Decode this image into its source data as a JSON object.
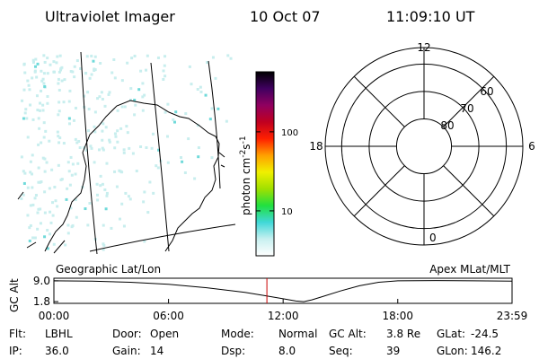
{
  "header": {
    "title": "Ultraviolet Imager",
    "date": "10 Oct 07",
    "time": "11:09:10 UT"
  },
  "colorbar": {
    "label": [
      "photon cm",
      "-2",
      "s",
      "-1"
    ],
    "log_scale": true,
    "clim": [
      2.7,
      575
    ],
    "ticks": [
      10,
      100
    ],
    "colors": [
      "#ffffff",
      "#c8f0f0",
      "#40d8d8",
      "#20e040",
      "#a0e000",
      "#f0f000",
      "#ffa000",
      "#ff2000",
      "#c00020",
      "#900060",
      "#400060",
      "#000000"
    ]
  },
  "polar": {
    "rlim": [
      90,
      54
    ],
    "hours": [
      12,
      18,
      6,
      0
    ],
    "lats": [
      80,
      70,
      60
    ]
  },
  "altitude": {
    "ylabel": "GC Alt",
    "left_title": "Geographic Lat/Lon",
    "right_title": "Apex MLat/MLT",
    "xlim": [
      0,
      1439
    ],
    "ylim": [
      1.2,
      9.9
    ],
    "yticks": [
      {
        "value": 9.0,
        "label": "9.0"
      },
      {
        "value": 1.8,
        "label": "1.8"
      }
    ],
    "xticks": [
      {
        "value": 0,
        "label": "00:00"
      },
      {
        "value": 360,
        "label": "06:00"
      },
      {
        "value": 720,
        "label": "12:00"
      },
      {
        "value": 1080,
        "label": "18:00"
      },
      {
        "value": 1439,
        "label": "23:59"
      }
    ],
    "x": [
      0,
      120,
      240,
      360,
      480,
      600,
      660,
      720,
      760,
      785,
      810,
      840,
      900,
      960,
      1020,
      1080,
      1200,
      1320,
      1439
    ],
    "values": [
      9.0,
      8.9,
      8.5,
      7.8,
      6.6,
      5.0,
      3.9,
      2.8,
      2.0,
      1.8,
      2.4,
      3.4,
      5.5,
      7.3,
      8.5,
      9.0,
      9.1,
      9.0,
      8.9
    ],
    "marker_x": 669,
    "marker_color": "#cc0000"
  },
  "footer": [
    [
      [
        "Flt:",
        "LBHL"
      ],
      [
        "Door:",
        "Open"
      ],
      [
        "Mode:",
        "Normal"
      ],
      [
        "GC Alt:",
        "3.8 Re"
      ],
      [
        "GLat:",
        "-24.5"
      ]
    ],
    [
      [
        "IP:",
        "36.0"
      ],
      [
        "Gain:",
        "14"
      ],
      [
        "Dsp:",
        "8.0"
      ],
      [
        "Seq:",
        "39"
      ],
      [
        "GLon:",
        "146.2"
      ]
    ]
  ]
}
